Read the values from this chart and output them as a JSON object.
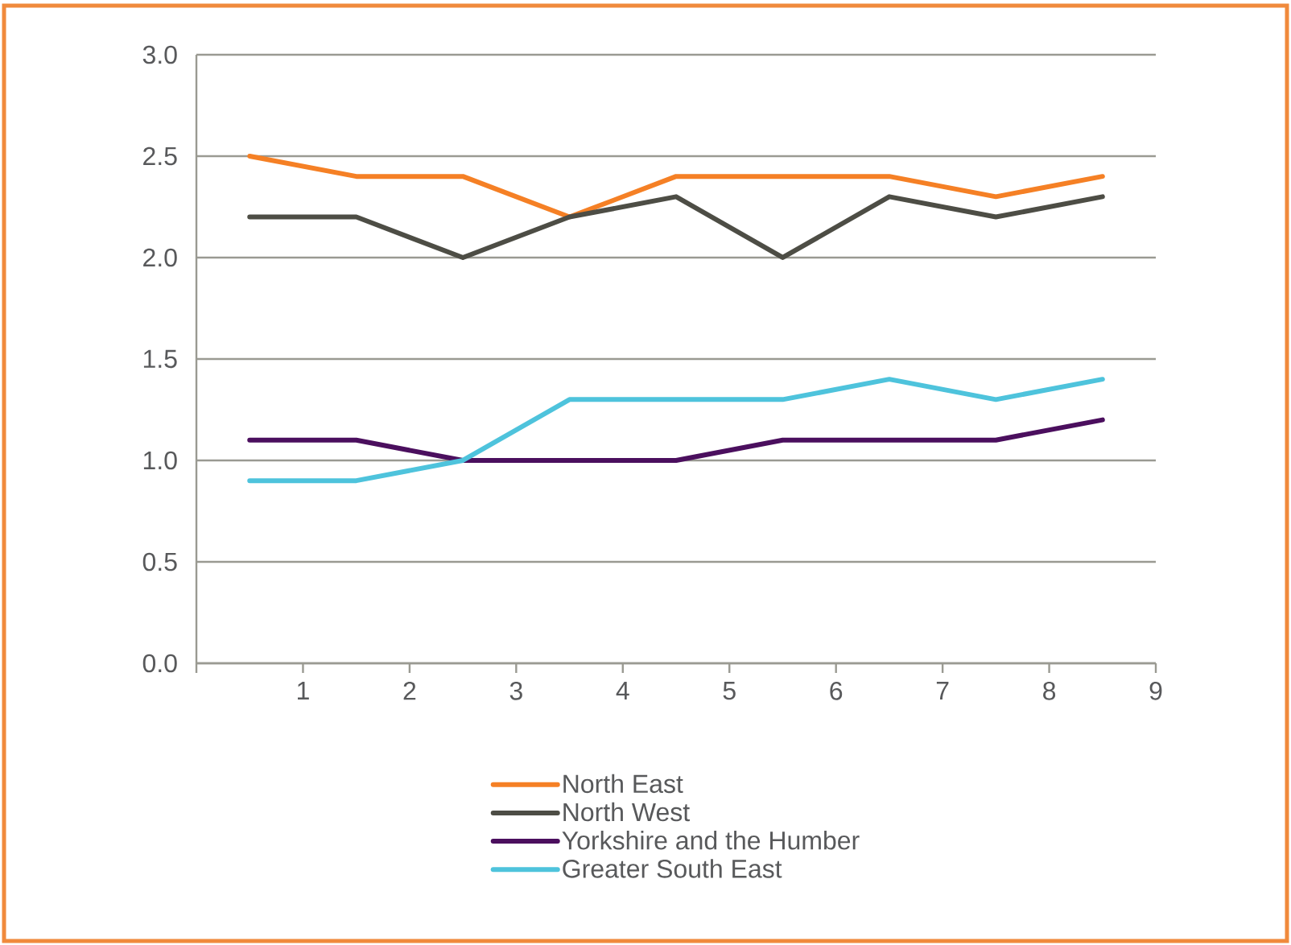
{
  "chart_data": {
    "type": "line",
    "x": [
      0.5,
      1.5,
      2.5,
      3.5,
      4.5,
      5.5,
      6.5,
      7.5,
      8.5
    ],
    "series": [
      {
        "name": "North East",
        "color": "#f58025",
        "values": [
          2.5,
          2.4,
          2.4,
          2.2,
          2.4,
          2.4,
          2.4,
          2.3,
          2.4
        ]
      },
      {
        "name": "North West",
        "color": "#4d4d45",
        "values": [
          2.2,
          2.2,
          2.0,
          2.2,
          2.3,
          2.0,
          2.3,
          2.2,
          2.3
        ]
      },
      {
        "name": "Yorkshire and the Humber",
        "color": "#4b0f5e",
        "values": [
          1.1,
          1.1,
          1.0,
          1.0,
          1.0,
          1.1,
          1.1,
          1.1,
          1.2
        ]
      },
      {
        "name": "Greater South East",
        "color": "#4ec3dc",
        "values": [
          0.9,
          0.9,
          1.0,
          1.3,
          1.3,
          1.3,
          1.4,
          1.3,
          1.4
        ]
      }
    ],
    "xlim": [
      0,
      9
    ],
    "xticks": [
      {
        "value": 0,
        "label": null
      },
      1,
      2,
      3,
      4,
      5,
      6,
      7,
      8,
      9
    ],
    "ylim": [
      0,
      3
    ],
    "yticks": [
      {
        "value": 0,
        "label": "0.0"
      },
      {
        "value": 0.5,
        "label": "0.5"
      },
      {
        "value": 1,
        "label": "1.0"
      },
      {
        "value": 1.5,
        "label": "1.5"
      },
      {
        "value": 2,
        "label": "2.0"
      },
      {
        "value": 2.5,
        "label": "2.5"
      },
      {
        "value": 3,
        "label": "3.0"
      }
    ],
    "grid": "y",
    "legend": "bottom",
    "marker": "none",
    "line_style": "solid"
  }
}
